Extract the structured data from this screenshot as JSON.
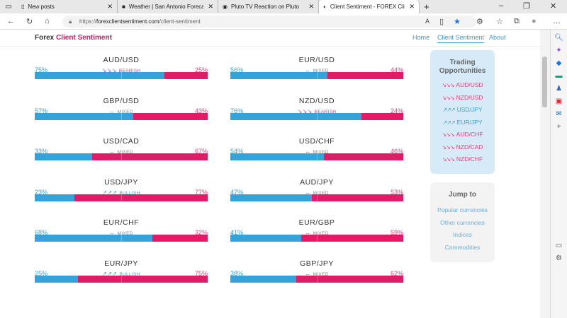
{
  "tabs": [
    {
      "title": "New posts",
      "active": false
    },
    {
      "title": "Weather | San Antonio Forecast",
      "active": false
    },
    {
      "title": "Pluto TV Reaction on Pluto",
      "active": false
    },
    {
      "title": "Client Sentiment - FOREX Client",
      "active": true
    }
  ],
  "address": {
    "prefix": "https://",
    "domain": "forexclientsentiment.com",
    "path": "/client-sentiment"
  },
  "site": {
    "brand1": "Forex",
    "brand2": "Client Sentiment",
    "nav": [
      "Home",
      "Client Sentiment",
      "About"
    ]
  },
  "pairs": [
    {
      "name": "AUD/USD",
      "long": "75%",
      "short": "25%",
      "signal": "Bearish",
      "long_pct": 75
    },
    {
      "name": "EUR/USD",
      "long": "56%",
      "short": "44%",
      "signal": "Mixed",
      "long_pct": 56
    },
    {
      "name": "GBP/USD",
      "long": "57%",
      "short": "43%",
      "signal": "Mixed",
      "long_pct": 57
    },
    {
      "name": "NZD/USD",
      "long": "76%",
      "short": "24%",
      "signal": "Bearish",
      "long_pct": 76
    },
    {
      "name": "USD/CAD",
      "long": "33%",
      "short": "67%",
      "signal": "Mixed",
      "long_pct": 33
    },
    {
      "name": "USD/CHF",
      "long": "54%",
      "short": "46%",
      "signal": "Mixed",
      "long_pct": 54
    },
    {
      "name": "USD/JPY",
      "long": "23%",
      "short": "77%",
      "signal": "Bullish",
      "long_pct": 23
    },
    {
      "name": "AUD/JPY",
      "long": "47%",
      "short": "53%",
      "signal": "Mixed",
      "long_pct": 47
    },
    {
      "name": "EUR/CHF",
      "long": "68%",
      "short": "32%",
      "signal": "Mixed",
      "long_pct": 68
    },
    {
      "name": "EUR/GBP",
      "long": "41%",
      "short": "59%",
      "signal": "Mixed",
      "long_pct": 41
    },
    {
      "name": "EUR/JPY",
      "long": "25%",
      "short": "75%",
      "signal": "Bullish",
      "long_pct": 25
    },
    {
      "name": "GBP/JPY",
      "long": "38%",
      "short": "62%",
      "signal": "Mixed",
      "long_pct": 38
    }
  ],
  "opportunities": {
    "title": "Trading Opportunities",
    "items": [
      {
        "name": "AUD/USD",
        "dir": "bearish"
      },
      {
        "name": "NZD/USD",
        "dir": "bearish"
      },
      {
        "name": "USD/JPY",
        "dir": "bullish"
      },
      {
        "name": "EUR/JPY",
        "dir": "bullish"
      },
      {
        "name": "AUD/CHF",
        "dir": "bearish"
      },
      {
        "name": "NZD/CAD",
        "dir": "bearish"
      },
      {
        "name": "NZD/CHF",
        "dir": "bearish"
      }
    ]
  },
  "jump": {
    "title": "Jump to",
    "links": [
      "Popular currencies",
      "Other currencies",
      "Indices",
      "Commodities"
    ]
  },
  "colors": {
    "long": "#34a3d9",
    "short": "#e31b66",
    "bull": "#3aa0d8",
    "bear": "#e0457b",
    "mixed": "#888888"
  }
}
